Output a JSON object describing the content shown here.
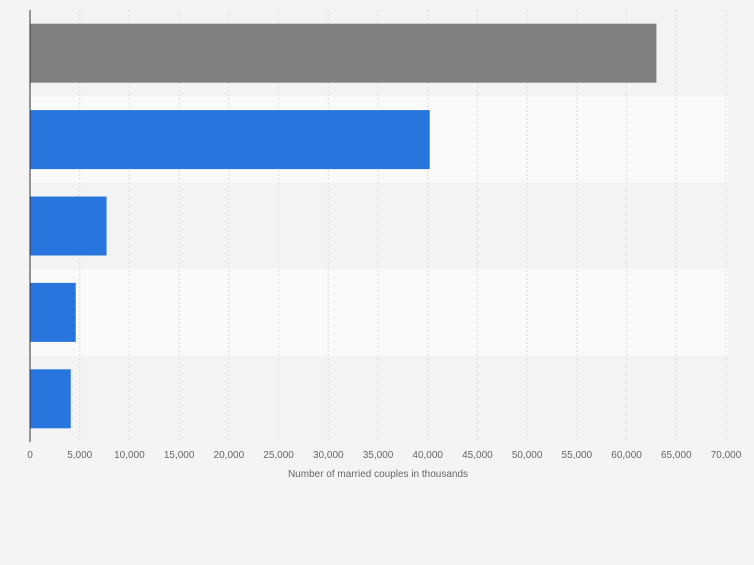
{
  "chart_data": {
    "type": "bar",
    "orientation": "horizontal",
    "categories": [
      "",
      "",
      "",
      "",
      ""
    ],
    "values": [
      63000,
      40200,
      7700,
      4600,
      4100
    ],
    "bar_colors": [
      "#808080",
      "#2876dd",
      "#2876dd",
      "#2876dd",
      "#2876dd"
    ],
    "xlabel": "Number of married couples in thousands",
    "ylabel": "",
    "xlim": [
      0,
      70000
    ],
    "x_ticks": [
      0,
      5000,
      10000,
      15000,
      20000,
      25000,
      30000,
      35000,
      40000,
      45000,
      50000,
      55000,
      60000,
      65000,
      70000
    ],
    "x_tick_labels": [
      "0",
      "5,000",
      "10,000",
      "15,000",
      "20,000",
      "25,000",
      "30,000",
      "35,000",
      "40,000",
      "45,000",
      "50,000",
      "55,000",
      "60,000",
      "65,000",
      "70,000"
    ],
    "grid": true,
    "band_colors": [
      "#f3f3f3",
      "#fafafa"
    ]
  }
}
